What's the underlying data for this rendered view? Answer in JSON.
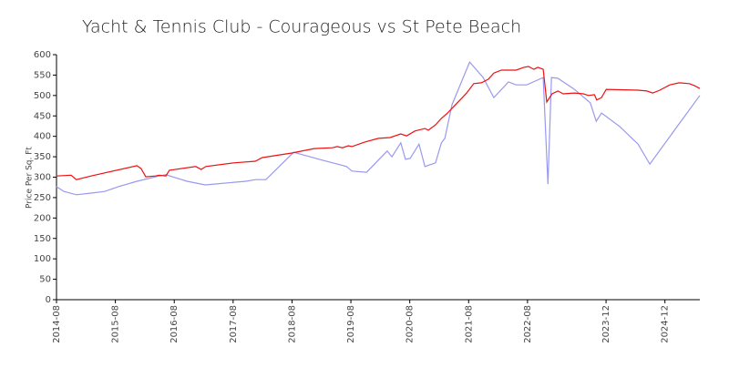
{
  "chart_data": {
    "type": "line",
    "title": "Yacht & Tennis Club - Courageous vs St Pete Beach",
    "ylabel": "Price Per Sq. Ft",
    "xlim": [
      2014.583,
      2025.51
    ],
    "ylim": [
      0,
      600
    ],
    "xticks": [
      {
        "value": 2014.583,
        "label": "2014-08"
      },
      {
        "value": 2015.583,
        "label": "2015-08"
      },
      {
        "value": 2016.583,
        "label": "2016-08"
      },
      {
        "value": 2017.583,
        "label": "2017-08"
      },
      {
        "value": 2018.583,
        "label": "2018-08"
      },
      {
        "value": 2019.583,
        "label": "2019-08"
      },
      {
        "value": 2020.583,
        "label": "2020-08"
      },
      {
        "value": 2021.583,
        "label": "2021-08"
      },
      {
        "value": 2022.583,
        "label": "2022-08"
      },
      {
        "value": 2023.917,
        "label": "2023-12"
      },
      {
        "value": 2024.917,
        "label": "2024-12"
      }
    ],
    "yticks": [
      0,
      50,
      100,
      150,
      200,
      250,
      300,
      350,
      400,
      450,
      500,
      550,
      600
    ],
    "grid": false,
    "series": [
      {
        "color": "#9999ee",
        "x": [
          2014.58,
          2014.71,
          2014.92,
          2015.17,
          2015.4,
          2015.64,
          2015.95,
          2016.33,
          2016.44,
          2016.64,
          2016.8,
          2017.11,
          2017.26,
          2017.8,
          2017.96,
          2018.14,
          2018.61,
          2019.04,
          2019.51,
          2019.6,
          2019.85,
          2020.2,
          2020.28,
          2020.43,
          2020.51,
          2020.59,
          2020.74,
          2020.84,
          2021.02,
          2021.12,
          2021.18,
          2021.3,
          2021.6,
          2021.83,
          2022.01,
          2022.26,
          2022.39,
          2022.57,
          2022.85,
          2022.93,
          2022.99,
          2023.1,
          2023.38,
          2023.65,
          2023.75,
          2023.84,
          2024.15,
          2024.46,
          2024.66,
          2025.08,
          2025.51
        ],
        "values": [
          277,
          265,
          257,
          261,
          265,
          277,
          290,
          303,
          306,
          297,
          290,
          281,
          283,
          290,
          294,
          294,
          361,
          344,
          326,
          315,
          312,
          364,
          350,
          384,
          344,
          346,
          381,
          326,
          335,
          384,
          395,
          477,
          582,
          544,
          495,
          533,
          526,
          526,
          544,
          283,
          544,
          542,
          515,
          482,
          437,
          457,
          424,
          381,
          332,
          415,
          500
        ]
      },
      {
        "color": "#ee1111",
        "x": [
          2014.58,
          2014.83,
          2014.92,
          2015.17,
          2015.95,
          2016.02,
          2016.1,
          2016.26,
          2016.33,
          2016.44,
          2016.5,
          2016.95,
          2017.04,
          2017.12,
          2017.59,
          2017.96,
          2018.08,
          2018.58,
          2018.96,
          2019.27,
          2019.35,
          2019.44,
          2019.54,
          2019.6,
          2019.82,
          2020.05,
          2020.25,
          2020.43,
          2020.53,
          2020.67,
          2020.84,
          2020.9,
          2021.02,
          2021.12,
          2021.21,
          2021.39,
          2021.55,
          2021.67,
          2021.8,
          2021.92,
          2022.01,
          2022.14,
          2022.39,
          2022.52,
          2022.6,
          2022.69,
          2022.76,
          2022.85,
          2022.91,
          2023.0,
          2023.1,
          2023.19,
          2023.38,
          2023.53,
          2023.62,
          2023.72,
          2023.76,
          2023.84,
          2023.92,
          2024.46,
          2024.61,
          2024.71,
          2024.83,
          2025.0,
          2025.16,
          2025.33,
          2025.42,
          2025.51
        ],
        "values": [
          303,
          305,
          294,
          303,
          328,
          321,
          301,
          303,
          305,
          303,
          317,
          326,
          319,
          326,
          335,
          339,
          348,
          359,
          370,
          372,
          375,
          372,
          377,
          375,
          386,
          395,
          397,
          406,
          401,
          413,
          419,
          415,
          428,
          444,
          455,
          482,
          506,
          529,
          531,
          540,
          555,
          562,
          562,
          569,
          571,
          564,
          569,
          564,
          484,
          504,
          511,
          504,
          506,
          504,
          500,
          502,
          489,
          495,
          515,
          513,
          511,
          506,
          513,
          526,
          531,
          529,
          524,
          517
        ]
      }
    ]
  }
}
